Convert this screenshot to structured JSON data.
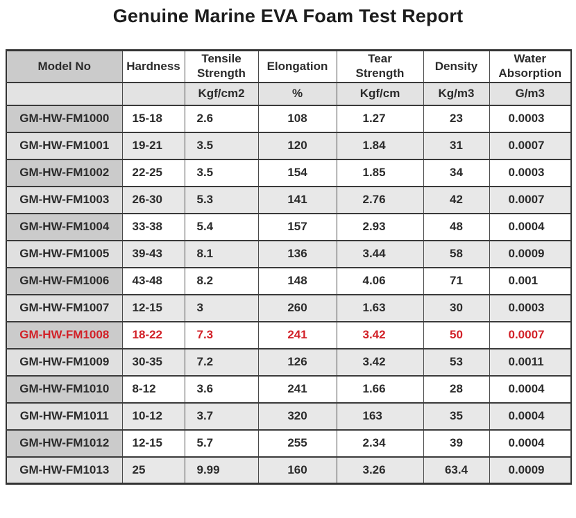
{
  "title": "Genuine Marine EVA Foam Test Report",
  "table": {
    "highlight_color": "#d22128",
    "columns": [
      {
        "label": "Model No",
        "unit": ""
      },
      {
        "label": "Hardness",
        "unit": ""
      },
      {
        "label": "Tensile\nStrength",
        "unit": "Kgf/cm2"
      },
      {
        "label": "Elongation",
        "unit": "%"
      },
      {
        "label": "Tear\nStrength",
        "unit": "Kgf/cm"
      },
      {
        "label": "Density",
        "unit": "Kg/m3"
      },
      {
        "label": "Water\nAbsorption",
        "unit": "G/m3"
      }
    ],
    "rows": [
      {
        "cells": [
          "GM-HW-FM1000",
          "15-18",
          "2.6",
          "108",
          "1.27",
          "23",
          "0.0003"
        ],
        "highlight": false
      },
      {
        "cells": [
          "GM-HW-FM1001",
          "19-21",
          "3.5",
          "120",
          "1.84",
          "31",
          "0.0007"
        ],
        "highlight": false
      },
      {
        "cells": [
          "GM-HW-FM1002",
          "22-25",
          "3.5",
          "154",
          "1.85",
          "34",
          "0.0003"
        ],
        "highlight": false
      },
      {
        "cells": [
          "GM-HW-FM1003",
          "26-30",
          "5.3",
          "141",
          "2.76",
          "42",
          "0.0007"
        ],
        "highlight": false
      },
      {
        "cells": [
          "GM-HW-FM1004",
          "33-38",
          "5.4",
          "157",
          "2.93",
          "48",
          "0.0004"
        ],
        "highlight": false
      },
      {
        "cells": [
          "GM-HW-FM1005",
          "39-43",
          "8.1",
          "136",
          "3.44",
          "58",
          "0.0009"
        ],
        "highlight": false
      },
      {
        "cells": [
          "GM-HW-FM1006",
          "43-48",
          "8.2",
          "148",
          "4.06",
          "71",
          "0.001"
        ],
        "highlight": false
      },
      {
        "cells": [
          "GM-HW-FM1007",
          "12-15",
          "3",
          "260",
          "1.63",
          "30",
          "0.0003"
        ],
        "highlight": false
      },
      {
        "cells": [
          "GM-HW-FM1008",
          "18-22",
          "7.3",
          "241",
          "3.42",
          "50",
          "0.0007"
        ],
        "highlight": true
      },
      {
        "cells": [
          "GM-HW-FM1009",
          "30-35",
          "7.2",
          "126",
          "3.42",
          "53",
          "0.0011"
        ],
        "highlight": false
      },
      {
        "cells": [
          "GM-HW-FM1010",
          "8-12",
          "3.6",
          "241",
          "1.66",
          "28",
          "0.0004"
        ],
        "highlight": false
      },
      {
        "cells": [
          "GM-HW-FM1011",
          "10-12",
          "3.7",
          "320",
          "163",
          "35",
          "0.0004"
        ],
        "highlight": false
      },
      {
        "cells": [
          "GM-HW-FM1012",
          "12-15",
          "5.7",
          "255",
          "2.34",
          "39",
          "0.0004"
        ],
        "highlight": false
      },
      {
        "cells": [
          "GM-HW-FM1013",
          "25",
          "9.99",
          "160",
          "3.26",
          "63.4",
          "0.0009"
        ],
        "highlight": false
      }
    ]
  }
}
